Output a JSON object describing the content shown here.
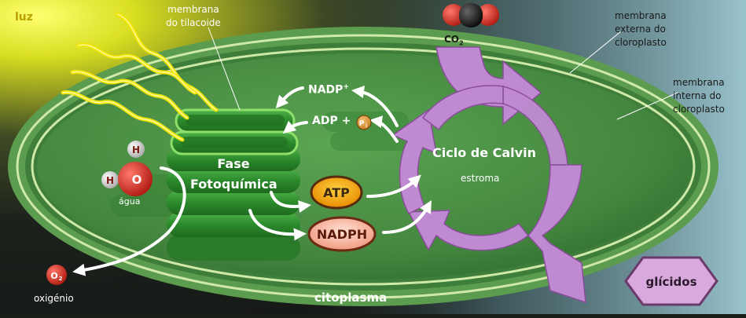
{
  "labels": {
    "light": "luz",
    "thylakoid_membrane": [
      "membrana",
      "do tilacoide"
    ],
    "outer_membrane": [
      "membrana",
      "externa do",
      "cloroplasto"
    ],
    "inner_membrane": [
      "membrana",
      "interna do",
      "cloroplasto"
    ],
    "co2_main": "CO",
    "co2_sub": "2",
    "photochemical_phase": [
      "Fase",
      "Fotoquímica"
    ],
    "nadp_main": "NADP",
    "nadp_sup": "+",
    "adp": "ADP +",
    "pi_main": "P",
    "pi_sub": "i",
    "atp": "ATP",
    "nadph": "NADPH",
    "calvin_cycle": "Ciclo de Calvin",
    "stroma": "estroma",
    "water": "água",
    "water_h": "H",
    "water_o": "O",
    "o2_main": "O",
    "o2_sub": "2",
    "oxygen": "oxigénio",
    "cytoplasm": "citoplasma",
    "glucides": "glícidos"
  },
  "colors": {
    "light": "#f2e600",
    "stroma": "#4f9648",
    "grana": "#2f8a2c",
    "calvin_arrow": "#c08ad2",
    "atp_fill": "#f2a000",
    "nadph_fill": "#f4b09a",
    "glucides_fill": "#d9a9dd",
    "oxygen_red": "#d42b1e"
  }
}
